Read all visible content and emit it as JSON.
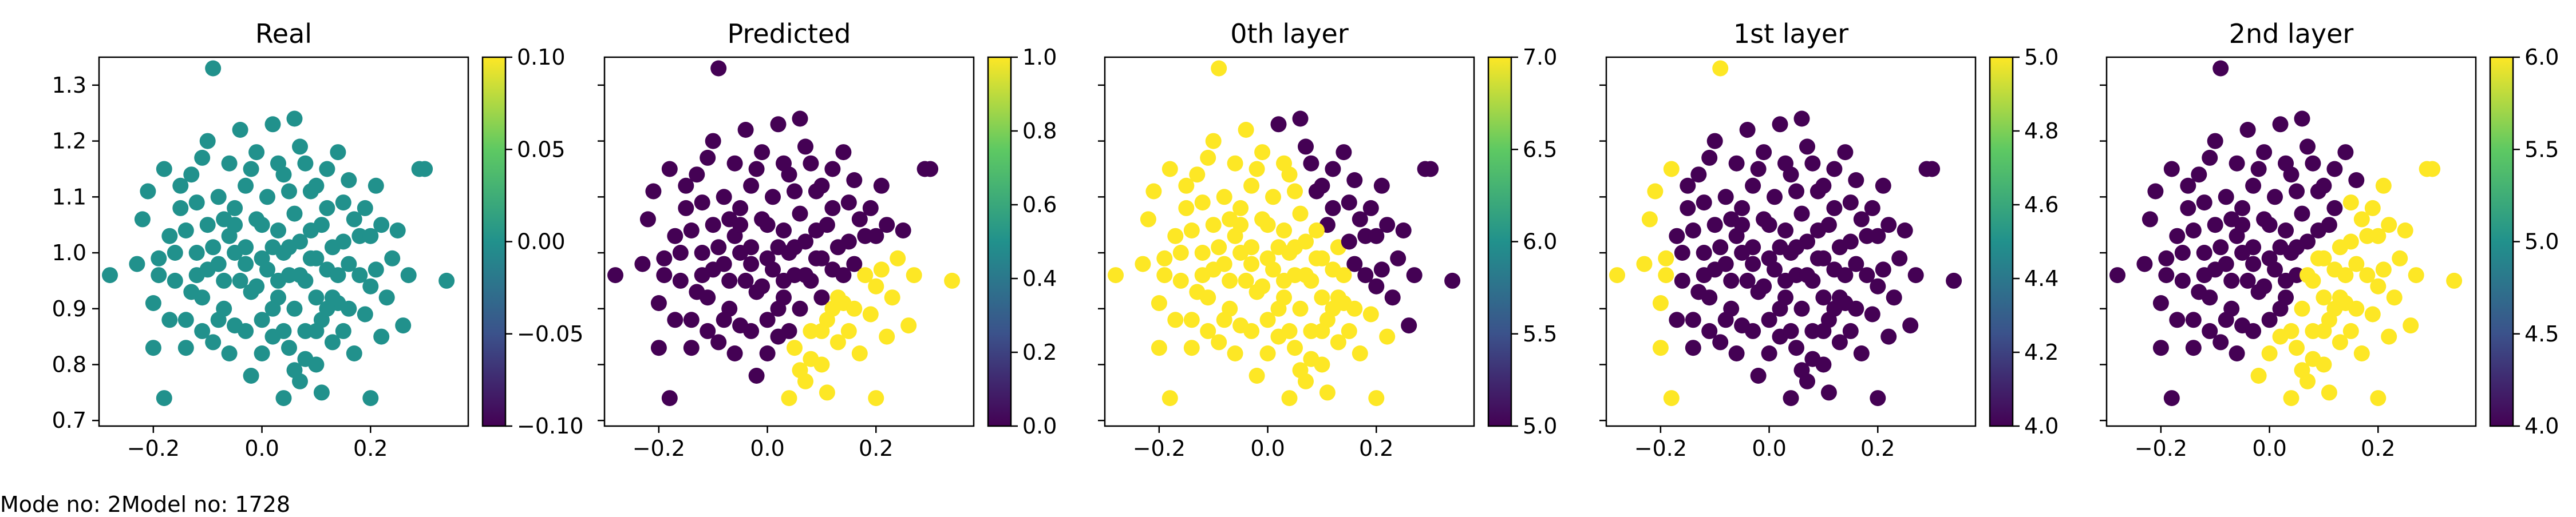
{
  "footer": {
    "text": "Mode no: 2Model no: 1728"
  },
  "colors": {
    "teal": "#21918c",
    "purple": "#440154",
    "yellow": "#fde725"
  },
  "chart_data": [
    {
      "type": "scatter",
      "title": "Real",
      "xlim": [
        -0.3,
        0.38
      ],
      "ylim": [
        0.69,
        1.35
      ],
      "xticks": [
        -0.2,
        0.0,
        0.2
      ],
      "xtick_labels": [
        "−0.2",
        "0.0",
        "0.2"
      ],
      "yticks": [
        0.7,
        0.8,
        0.9,
        1.0,
        1.1,
        1.2,
        1.3
      ],
      "ytick_labels": [
        "0.7",
        "0.8",
        "0.9",
        "1.0",
        "1.1",
        "1.2",
        "1.3"
      ],
      "colorbar": {
        "range": [
          -0.1,
          0.1
        ],
        "ticks": [
          -0.1,
          -0.05,
          0.0,
          0.05,
          0.1
        ],
        "labels": [
          "−0.10",
          "−0.05",
          "0.00",
          "0.05",
          "0.10"
        ]
      },
      "coloring": "constant",
      "show_yticklabels": true
    },
    {
      "type": "scatter",
      "title": "Predicted",
      "xlim": [
        -0.3,
        0.38
      ],
      "ylim": [
        0.69,
        1.35
      ],
      "xticks": [
        -0.2,
        0.0,
        0.2
      ],
      "xtick_labels": [
        "−0.2",
        "0.0",
        "0.2"
      ],
      "yticks": [
        0.7,
        0.8,
        0.9,
        1.0,
        1.1,
        1.2,
        1.3
      ],
      "ytick_labels": [],
      "colorbar": {
        "range": [
          0.0,
          1.0
        ],
        "ticks": [
          0.0,
          0.2,
          0.4,
          0.6,
          0.8,
          1.0
        ],
        "labels": [
          "0.0",
          "0.2",
          "0.4",
          "0.6",
          "0.8",
          "1.0"
        ]
      },
      "coloring": "predicted",
      "show_yticklabels": false
    },
    {
      "type": "scatter",
      "title": "0th layer",
      "xlim": [
        -0.3,
        0.38
      ],
      "ylim": [
        0.69,
        1.35
      ],
      "xticks": [
        -0.2,
        0.0,
        0.2
      ],
      "xtick_labels": [
        "−0.2",
        "0.0",
        "0.2"
      ],
      "yticks": [
        0.7,
        0.8,
        0.9,
        1.0,
        1.1,
        1.2,
        1.3
      ],
      "ytick_labels": [],
      "colorbar": {
        "range": [
          5.0,
          7.0
        ],
        "ticks": [
          5.0,
          5.5,
          6.0,
          6.5,
          7.0
        ],
        "labels": [
          "5.0",
          "5.5",
          "6.0",
          "6.5",
          "7.0"
        ]
      },
      "coloring": "layer0",
      "show_yticklabels": false
    },
    {
      "type": "scatter",
      "title": "1st layer",
      "xlim": [
        -0.3,
        0.38
      ],
      "ylim": [
        0.69,
        1.35
      ],
      "xticks": [
        -0.2,
        0.0,
        0.2
      ],
      "xtick_labels": [
        "−0.2",
        "0.0",
        "0.2"
      ],
      "yticks": [
        0.7,
        0.8,
        0.9,
        1.0,
        1.1,
        1.2,
        1.3
      ],
      "ytick_labels": [],
      "colorbar": {
        "range": [
          4.0,
          5.0
        ],
        "ticks": [
          4.0,
          4.2,
          4.4,
          4.6,
          4.8,
          5.0
        ],
        "labels": [
          "4.0",
          "4.2",
          "4.4",
          "4.6",
          "4.8",
          "5.0"
        ]
      },
      "coloring": "layer1",
      "show_yticklabels": false
    },
    {
      "type": "scatter",
      "title": "2nd layer",
      "xlim": [
        -0.3,
        0.38
      ],
      "ylim": [
        0.69,
        1.35
      ],
      "xticks": [
        -0.2,
        0.0,
        0.2
      ],
      "xtick_labels": [
        "−0.2",
        "0.0",
        "0.2"
      ],
      "yticks": [
        0.7,
        0.8,
        0.9,
        1.0,
        1.1,
        1.2,
        1.3
      ],
      "ytick_labels": [],
      "colorbar": {
        "range": [
          4.0,
          6.0
        ],
        "ticks": [
          4.0,
          4.5,
          5.0,
          5.5,
          6.0
        ],
        "labels": [
          "4.0",
          "4.5",
          "5.0",
          "5.5",
          "6.0"
        ]
      },
      "coloring": "layer2",
      "show_yticklabels": false
    }
  ],
  "points": [
    [
      -0.28,
      0.96
    ],
    [
      0.34,
      0.95
    ],
    [
      -0.2,
      0.83
    ],
    [
      -0.19,
      0.96
    ],
    [
      -0.17,
      1.03
    ],
    [
      -0.15,
      1.08
    ],
    [
      -0.14,
      0.88
    ],
    [
      -0.13,
      1.14
    ],
    [
      -0.12,
      1.0
    ],
    [
      -0.11,
      0.92
    ],
    [
      -0.1,
      1.05
    ],
    [
      -0.1,
      1.2
    ],
    [
      -0.09,
      0.84
    ],
    [
      -0.08,
      1.1
    ],
    [
      -0.08,
      0.98
    ],
    [
      -0.07,
      0.9
    ],
    [
      -0.06,
      1.16
    ],
    [
      -0.06,
      1.03
    ],
    [
      -0.05,
      0.87
    ],
    [
      -0.05,
      1.08
    ],
    [
      -0.04,
      0.95
    ],
    [
      -0.03,
      1.12
    ],
    [
      -0.03,
      1.01
    ],
    [
      -0.02,
      0.78
    ],
    [
      -0.02,
      0.93
    ],
    [
      -0.01,
      1.18
    ],
    [
      -0.01,
      1.06
    ],
    [
      0.0,
      0.99
    ],
    [
      0.0,
      0.88
    ],
    [
      0.01,
      1.1
    ],
    [
      0.01,
      0.97
    ],
    [
      0.02,
      1.23
    ],
    [
      0.02,
      0.85
    ],
    [
      0.03,
      1.04
    ],
    [
      0.03,
      0.92
    ],
    [
      0.04,
      1.14
    ],
    [
      0.04,
      1.0
    ],
    [
      0.05,
      0.83
    ],
    [
      0.05,
      0.96
    ],
    [
      0.06,
      1.07
    ],
    [
      0.06,
      0.9
    ],
    [
      0.07,
      1.19
    ],
    [
      0.07,
      1.02
    ],
    [
      0.08,
      0.86
    ],
    [
      0.08,
      0.95
    ],
    [
      0.09,
      1.11
    ],
    [
      0.09,
      0.99
    ],
    [
      0.1,
      0.8
    ],
    [
      0.1,
      0.92
    ],
    [
      0.11,
      1.05
    ],
    [
      0.11,
      0.88
    ],
    [
      0.12,
      1.15
    ],
    [
      0.12,
      0.97
    ],
    [
      0.13,
      0.84
    ],
    [
      0.13,
      1.01
    ],
    [
      0.14,
      0.91
    ],
    [
      0.15,
      1.09
    ],
    [
      0.15,
      0.86
    ],
    [
      0.16,
      0.98
    ],
    [
      0.17,
      0.82
    ],
    [
      0.18,
      1.03
    ],
    [
      0.19,
      0.89
    ],
    [
      0.2,
      0.94
    ],
    [
      0.21,
      1.12
    ],
    [
      0.22,
      0.85
    ],
    [
      0.24,
      0.99
    ],
    [
      0.26,
      0.87
    ],
    [
      0.29,
      1.15
    ],
    [
      0.3,
      1.15
    ],
    [
      -0.09,
      1.33
    ],
    [
      -0.23,
      0.98
    ],
    [
      -0.22,
      1.06
    ],
    [
      -0.21,
      1.11
    ],
    [
      -0.2,
      0.91
    ],
    [
      -0.18,
      1.15
    ],
    [
      -0.16,
      0.95
    ],
    [
      -0.15,
      1.12
    ],
    [
      -0.14,
      1.04
    ],
    [
      -0.13,
      0.93
    ],
    [
      -0.12,
      1.09
    ],
    [
      -0.11,
      1.17
    ],
    [
      -0.1,
      0.97
    ],
    [
      -0.09,
      1.01
    ],
    [
      -0.07,
      1.06
    ],
    [
      -0.04,
      1.22
    ],
    [
      -0.02,
      1.15
    ],
    [
      0.0,
      1.05
    ],
    [
      0.02,
      1.01
    ],
    [
      0.03,
      1.16
    ],
    [
      0.05,
      1.11
    ],
    [
      0.06,
      1.24
    ],
    [
      0.08,
      1.16
    ],
    [
      0.1,
      1.12
    ],
    [
      0.12,
      1.08
    ],
    [
      0.14,
      1.18
    ],
    [
      0.16,
      1.13
    ],
    [
      0.17,
      1.06
    ],
    [
      0.19,
      1.08
    ],
    [
      0.2,
      1.03
    ],
    [
      0.22,
      1.05
    ],
    [
      0.25,
      1.04
    ],
    [
      0.27,
      0.96
    ],
    [
      0.23,
      0.92
    ],
    [
      0.21,
      0.97
    ],
    [
      0.18,
      0.96
    ],
    [
      0.16,
      0.9
    ],
    [
      0.14,
      0.96
    ],
    [
      0.12,
      0.9
    ],
    [
      0.1,
      0.86
    ],
    [
      0.08,
      0.81
    ],
    [
      0.06,
      0.79
    ],
    [
      0.04,
      0.86
    ],
    [
      0.02,
      0.9
    ],
    [
      0.0,
      0.82
    ],
    [
      -0.03,
      0.86
    ],
    [
      -0.06,
      0.82
    ],
    [
      -0.08,
      0.88
    ],
    [
      -0.11,
      0.86
    ],
    [
      -0.14,
      0.83
    ],
    [
      -0.17,
      0.88
    ],
    [
      -0.19,
      0.99
    ],
    [
      -0.16,
      1.0
    ],
    [
      -0.07,
      0.95
    ],
    [
      -0.05,
      1.0
    ],
    [
      0.05,
      1.01
    ],
    [
      0.07,
      0.96
    ],
    [
      -0.03,
      0.98
    ],
    [
      0.09,
      1.04
    ],
    [
      -0.12,
      0.96
    ],
    [
      0.13,
      0.92
    ],
    [
      0.04,
      0.74
    ],
    [
      0.07,
      0.77
    ],
    [
      -0.18,
      0.74
    ],
    [
      0.11,
      0.75
    ],
    [
      0.2,
      0.74
    ],
    [
      0.03,
      0.95
    ],
    [
      -0.01,
      0.94
    ],
    [
      0.15,
      1.02
    ],
    [
      -0.05,
      1.05
    ],
    [
      0.1,
      0.99
    ]
  ]
}
